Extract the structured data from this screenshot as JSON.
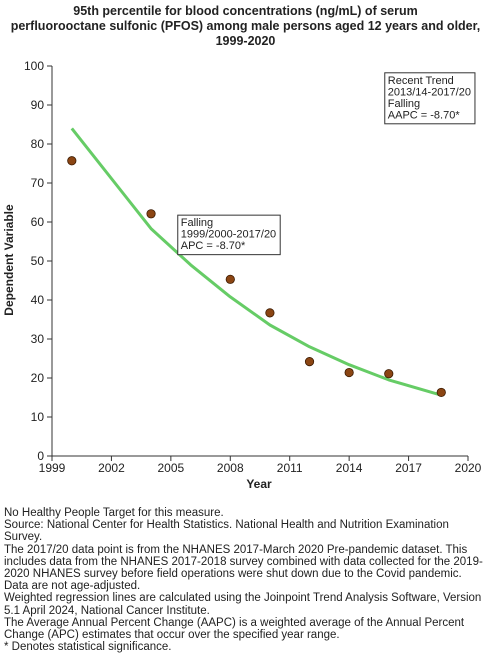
{
  "chart_data": {
    "type": "scatter",
    "title_lines": [
      "95th percentile for blood concentrations (ng/mL) of serum",
      "perfluorooctane sulfonic (PFOS) among male persons aged 12 years and older,",
      "1999-2020"
    ],
    "xlabel": "Year",
    "ylabel": "Dependent Variable",
    "xlim": [
      1999,
      2020
    ],
    "ylim": [
      0,
      100
    ],
    "x_ticks": [
      1999,
      2002,
      2005,
      2008,
      2011,
      2014,
      2017,
      2020
    ],
    "y_ticks": [
      0,
      10,
      20,
      30,
      40,
      50,
      60,
      70,
      80,
      90,
      100
    ],
    "grid": false,
    "series": [
      {
        "type": "scatter",
        "color": "#8B4513",
        "points": [
          {
            "x": 2000,
            "y": 75.7
          },
          {
            "x": 2004,
            "y": 62.1
          },
          {
            "x": 2006,
            "y": 54.5
          },
          {
            "x": 2008,
            "y": 45.3
          },
          {
            "x": 2010,
            "y": 36.7
          },
          {
            "x": 2012,
            "y": 24.2
          },
          {
            "x": 2014,
            "y": 21.4
          },
          {
            "x": 2016,
            "y": 21.1
          },
          {
            "x": 2018.65,
            "y": 16.3
          }
        ]
      },
      {
        "type": "line",
        "color": "#66CC66",
        "points": [
          {
            "x": 2000,
            "y": 84.0
          },
          {
            "x": 2004,
            "y": 58.3
          },
          {
            "x": 2006,
            "y": 49.0
          },
          {
            "x": 2008,
            "y": 40.8
          },
          {
            "x": 2010,
            "y": 33.6
          },
          {
            "x": 2012,
            "y": 28.0
          },
          {
            "x": 2014,
            "y": 23.4
          },
          {
            "x": 2016,
            "y": 19.5
          },
          {
            "x": 2018.65,
            "y": 15.6
          }
        ]
      }
    ],
    "annotations": [
      {
        "lines": [
          "Falling",
          "1999/2000-2017/20",
          "APC = -8.70*"
        ],
        "x": 2005.5,
        "y": 61.5
      },
      {
        "lines": [
          "Recent Trend",
          "2013/14-2017/20",
          "Falling",
          "AAPC = -8.70*"
        ],
        "x": 2015.95,
        "y": 98.0
      }
    ]
  },
  "notes": [
    "No Healthy People Target for this measure.",
    "Source: National Center for Health Statistics. National Health and Nutrition Examination Survey.",
    "The 2017/20 data point is from the NHANES 2017-March 2020 Pre-pandemic dataset. This includes data from the NHANES 2017-2018 survey combined with data collected for the 2019-2020 NHANES survey before field operations were shut down due to the Covid pandemic.",
    "Data are not age-adjusted.",
    "Weighted regression lines are calculated using the Joinpoint Trend Analysis Software, Version 5.1 April 2024, National Cancer Institute.",
    "The Average Annual Percent Change (AAPC) is a weighted average of the Annual Percent Change (APC) estimates that occur over the specified year range.",
    "* Denotes statistical significance."
  ]
}
